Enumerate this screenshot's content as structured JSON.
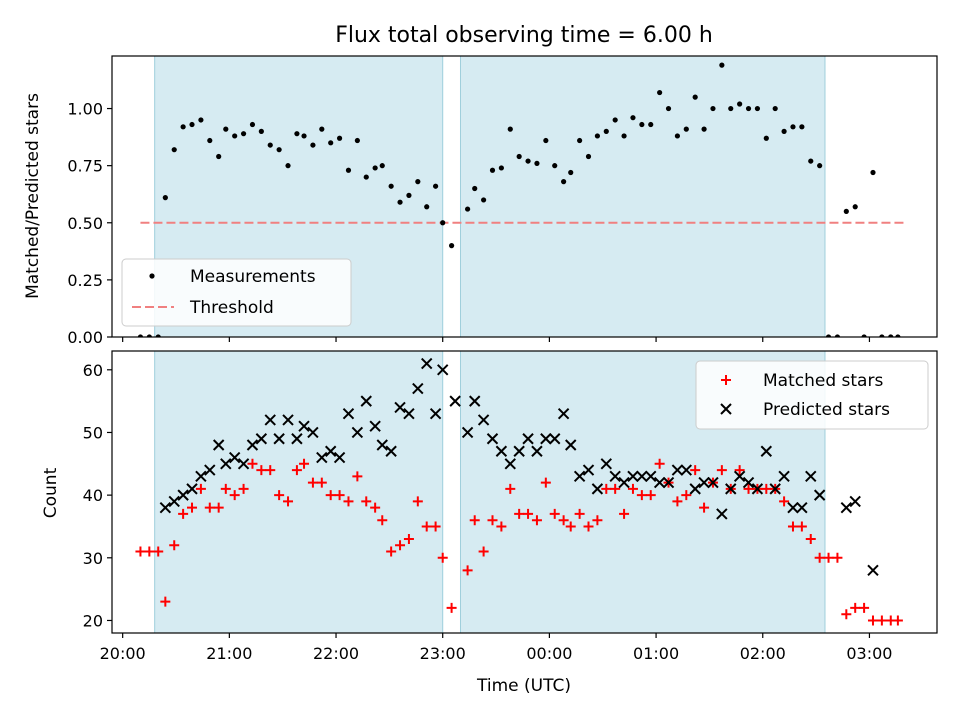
{
  "chart_data": [
    {
      "type": "scatter",
      "title": "Flux total observing time = 6.00 h",
      "xlabel": "",
      "ylabel": "Matched/Predicted stars",
      "xlim": [
        "19:54",
        "03:38"
      ],
      "ylim": [
        0,
        1.23
      ],
      "yticks": [
        "0.00",
        "0.25",
        "0.50",
        "0.75",
        "1.00"
      ],
      "shaded_spans": [
        [
          "20:18",
          "23:00"
        ],
        [
          "23:10",
          "02:35"
        ]
      ],
      "threshold": {
        "name": "Threshold",
        "value": 0.5,
        "x": [
          "20:10",
          "03:20"
        ],
        "color": "#f08080"
      },
      "legend": {
        "placement": "lower-left",
        "entries": [
          "Measurements",
          "Threshold"
        ]
      },
      "series": [
        {
          "name": "Measurements",
          "color": "#000000",
          "points": [
            [
              "20:10",
              0
            ],
            [
              "20:15",
              0
            ],
            [
              "20:20",
              0
            ],
            [
              "20:24",
              0.61
            ],
            [
              "20:29",
              0.82
            ],
            [
              "20:34",
              0.92
            ],
            [
              "20:39",
              0.93
            ],
            [
              "20:44",
              0.95
            ],
            [
              "20:49",
              0.86
            ],
            [
              "20:54",
              0.79
            ],
            [
              "20:58",
              0.91
            ],
            [
              "21:03",
              0.88
            ],
            [
              "21:08",
              0.89
            ],
            [
              "21:13",
              0.93
            ],
            [
              "21:18",
              0.9
            ],
            [
              "21:23",
              0.84
            ],
            [
              "21:28",
              0.82
            ],
            [
              "21:33",
              0.75
            ],
            [
              "21:38",
              0.89
            ],
            [
              "21:42",
              0.88
            ],
            [
              "21:47",
              0.84
            ],
            [
              "21:52",
              0.91
            ],
            [
              "21:57",
              0.85
            ],
            [
              "22:02",
              0.87
            ],
            [
              "22:07",
              0.73
            ],
            [
              "22:12",
              0.86
            ],
            [
              "22:17",
              0.7
            ],
            [
              "22:22",
              0.74
            ],
            [
              "22:26",
              0.75
            ],
            [
              "22:31",
              0.66
            ],
            [
              "22:36",
              0.59
            ],
            [
              "22:41",
              0.62
            ],
            [
              "22:46",
              0.68
            ],
            [
              "22:51",
              0.57
            ],
            [
              "22:56",
              0.66
            ],
            [
              "23:00",
              0.5
            ],
            [
              "23:05",
              0.4
            ],
            [
              "23:14",
              0.56
            ],
            [
              "23:18",
              0.65
            ],
            [
              "23:23",
              0.6
            ],
            [
              "23:28",
              0.73
            ],
            [
              "23:33",
              0.74
            ],
            [
              "23:38",
              0.91
            ],
            [
              "23:43",
              0.79
            ],
            [
              "23:48",
              0.77
            ],
            [
              "23:53",
              0.76
            ],
            [
              "23:58",
              0.86
            ],
            [
              "00:03",
              0.75
            ],
            [
              "00:08",
              0.68
            ],
            [
              "00:12",
              0.72
            ],
            [
              "00:17",
              0.86
            ],
            [
              "00:22",
              0.79
            ],
            [
              "00:27",
              0.88
            ],
            [
              "00:32",
              0.9
            ],
            [
              "00:37",
              0.95
            ],
            [
              "00:42",
              0.88
            ],
            [
              "00:47",
              0.96
            ],
            [
              "00:52",
              0.93
            ],
            [
              "00:57",
              0.93
            ],
            [
              "01:02",
              1.07
            ],
            [
              "01:07",
              1.0
            ],
            [
              "01:12",
              0.88
            ],
            [
              "01:17",
              0.91
            ],
            [
              "01:22",
              1.05
            ],
            [
              "01:27",
              0.91
            ],
            [
              "01:32",
              1.0
            ],
            [
              "01:37",
              1.19
            ],
            [
              "01:42",
              1.0
            ],
            [
              "01:47",
              1.02
            ],
            [
              "01:52",
              1.0
            ],
            [
              "01:57",
              1.0
            ],
            [
              "02:02",
              0.87
            ],
            [
              "02:07",
              1.0
            ],
            [
              "02:12",
              0.9
            ],
            [
              "02:17",
              0.92
            ],
            [
              "02:22",
              0.92
            ],
            [
              "02:27",
              0.77
            ],
            [
              "02:32",
              0.75
            ],
            [
              "02:37",
              0
            ],
            [
              "02:42",
              0
            ],
            [
              "02:47",
              0.55
            ],
            [
              "02:52",
              0.57
            ],
            [
              "02:57",
              0
            ],
            [
              "03:02",
              0.72
            ],
            [
              "03:07",
              0
            ],
            [
              "03:12",
              0
            ],
            [
              "03:16",
              0
            ]
          ]
        }
      ]
    },
    {
      "type": "scatter",
      "title": "",
      "xlabel": "Time (UTC)",
      "ylabel": "Count",
      "xlim": [
        "19:54",
        "03:38"
      ],
      "ylim": [
        18,
        63
      ],
      "yticks": [
        "20",
        "30",
        "40",
        "50",
        "60"
      ],
      "xticks": [
        "20:00",
        "21:00",
        "22:00",
        "23:00",
        "00:00",
        "01:00",
        "02:00",
        "03:00"
      ],
      "shaded_spans": [
        [
          "20:18",
          "23:00"
        ],
        [
          "23:10",
          "02:35"
        ]
      ],
      "legend": {
        "placement": "upper-right",
        "entries": [
          "Matched stars",
          "Predicted stars"
        ]
      },
      "series": [
        {
          "name": "Matched stars",
          "marker": "plus",
          "color": "#ff0000",
          "points": [
            [
              "20:10",
              31
            ],
            [
              "20:15",
              31
            ],
            [
              "20:20",
              31
            ],
            [
              "20:24",
              23
            ],
            [
              "20:29",
              32
            ],
            [
              "20:34",
              37
            ],
            [
              "20:39",
              38
            ],
            [
              "20:44",
              41
            ],
            [
              "20:49",
              38
            ],
            [
              "20:54",
              38
            ],
            [
              "20:58",
              41
            ],
            [
              "21:03",
              40
            ],
            [
              "21:08",
              41
            ],
            [
              "21:13",
              45
            ],
            [
              "21:18",
              44
            ],
            [
              "21:23",
              44
            ],
            [
              "21:28",
              40
            ],
            [
              "21:33",
              39
            ],
            [
              "21:38",
              44
            ],
            [
              "21:42",
              45
            ],
            [
              "21:47",
              42
            ],
            [
              "21:52",
              42
            ],
            [
              "21:57",
              40
            ],
            [
              "22:02",
              40
            ],
            [
              "22:07",
              39
            ],
            [
              "22:12",
              43
            ],
            [
              "22:17",
              39
            ],
            [
              "22:22",
              38
            ],
            [
              "22:26",
              36
            ],
            [
              "22:31",
              31
            ],
            [
              "22:36",
              32
            ],
            [
              "22:41",
              33
            ],
            [
              "22:46",
              39
            ],
            [
              "22:51",
              35
            ],
            [
              "22:56",
              35
            ],
            [
              "23:00",
              30
            ],
            [
              "23:05",
              22
            ],
            [
              "23:14",
              28
            ],
            [
              "23:18",
              36
            ],
            [
              "23:23",
              31
            ],
            [
              "23:28",
              36
            ],
            [
              "23:33",
              35
            ],
            [
              "23:38",
              41
            ],
            [
              "23:43",
              37
            ],
            [
              "23:48",
              37
            ],
            [
              "23:53",
              36
            ],
            [
              "23:58",
              42
            ],
            [
              "00:03",
              37
            ],
            [
              "00:08",
              36
            ],
            [
              "00:12",
              35
            ],
            [
              "00:17",
              37
            ],
            [
              "00:22",
              35
            ],
            [
              "00:27",
              36
            ],
            [
              "00:32",
              41
            ],
            [
              "00:37",
              41
            ],
            [
              "00:42",
              37
            ],
            [
              "00:47",
              41
            ],
            [
              "00:52",
              40
            ],
            [
              "00:57",
              40
            ],
            [
              "01:02",
              45
            ],
            [
              "01:07",
              42
            ],
            [
              "01:12",
              39
            ],
            [
              "01:17",
              40
            ],
            [
              "01:22",
              44
            ],
            [
              "01:27",
              38
            ],
            [
              "01:32",
              42
            ],
            [
              "01:37",
              44
            ],
            [
              "01:42",
              41
            ],
            [
              "01:47",
              44
            ],
            [
              "01:52",
              41
            ],
            [
              "01:57",
              41
            ],
            [
              "02:02",
              41
            ],
            [
              "02:07",
              41
            ],
            [
              "02:12",
              39
            ],
            [
              "02:17",
              35
            ],
            [
              "02:22",
              35
            ],
            [
              "02:27",
              33
            ],
            [
              "02:32",
              30
            ],
            [
              "02:37",
              30
            ],
            [
              "02:42",
              30
            ],
            [
              "02:47",
              21
            ],
            [
              "02:52",
              22
            ],
            [
              "02:57",
              22
            ],
            [
              "03:02",
              20
            ],
            [
              "03:07",
              20
            ],
            [
              "03:12",
              20
            ],
            [
              "03:16",
              20
            ]
          ]
        },
        {
          "name": "Predicted stars",
          "marker": "x",
          "color": "#000000",
          "points": [
            [
              "20:24",
              38
            ],
            [
              "20:29",
              39
            ],
            [
              "20:34",
              40
            ],
            [
              "20:39",
              41
            ],
            [
              "20:44",
              43
            ],
            [
              "20:49",
              44
            ],
            [
              "20:54",
              48
            ],
            [
              "20:58",
              45
            ],
            [
              "21:03",
              46
            ],
            [
              "21:08",
              45
            ],
            [
              "21:13",
              48
            ],
            [
              "21:18",
              49
            ],
            [
              "21:23",
              52
            ],
            [
              "21:28",
              49
            ],
            [
              "21:33",
              52
            ],
            [
              "21:38",
              49
            ],
            [
              "21:42",
              51
            ],
            [
              "21:47",
              50
            ],
            [
              "21:52",
              46
            ],
            [
              "21:57",
              47
            ],
            [
              "22:02",
              46
            ],
            [
              "22:07",
              53
            ],
            [
              "22:12",
              50
            ],
            [
              "22:17",
              55
            ],
            [
              "22:22",
              51
            ],
            [
              "22:26",
              48
            ],
            [
              "22:31",
              47
            ],
            [
              "22:36",
              54
            ],
            [
              "22:41",
              53
            ],
            [
              "22:46",
              57
            ],
            [
              "22:51",
              61
            ],
            [
              "22:56",
              53
            ],
            [
              "23:00",
              60
            ],
            [
              "23:07",
              55
            ],
            [
              "23:14",
              50
            ],
            [
              "23:18",
              55
            ],
            [
              "23:23",
              52
            ],
            [
              "23:28",
              49
            ],
            [
              "23:33",
              47
            ],
            [
              "23:38",
              45
            ],
            [
              "23:43",
              47
            ],
            [
              "23:48",
              49
            ],
            [
              "23:53",
              47
            ],
            [
              "23:58",
              49
            ],
            [
              "00:03",
              49
            ],
            [
              "00:08",
              53
            ],
            [
              "00:12",
              48
            ],
            [
              "00:17",
              43
            ],
            [
              "00:22",
              44
            ],
            [
              "00:27",
              41
            ],
            [
              "00:32",
              45
            ],
            [
              "00:37",
              43
            ],
            [
              "00:42",
              42
            ],
            [
              "00:47",
              43
            ],
            [
              "00:52",
              43
            ],
            [
              "00:57",
              43
            ],
            [
              "01:02",
              42
            ],
            [
              "01:07",
              42
            ],
            [
              "01:12",
              44
            ],
            [
              "01:17",
              44
            ],
            [
              "01:22",
              41
            ],
            [
              "01:27",
              42
            ],
            [
              "01:32",
              42
            ],
            [
              "01:37",
              37
            ],
            [
              "01:42",
              41
            ],
            [
              "01:47",
              43
            ],
            [
              "01:52",
              42
            ],
            [
              "01:57",
              41
            ],
            [
              "02:02",
              47
            ],
            [
              "02:07",
              41
            ],
            [
              "02:12",
              43
            ],
            [
              "02:17",
              38
            ],
            [
              "02:22",
              38
            ],
            [
              "02:27",
              43
            ],
            [
              "02:32",
              40
            ],
            [
              "02:47",
              38
            ],
            [
              "02:52",
              39
            ],
            [
              "03:02",
              28
            ]
          ]
        }
      ]
    }
  ]
}
